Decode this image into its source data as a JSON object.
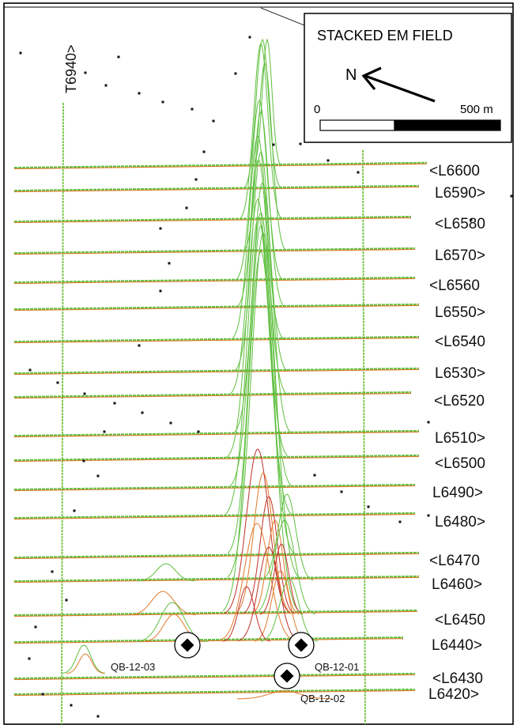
{
  "legend": {
    "title": "STACKED EM FIELD",
    "north": "N",
    "scale_start": "0",
    "scale_end": "500 m"
  },
  "tie_line": {
    "label": "T6940>"
  },
  "survey_lines": [
    {
      "label": "<L6600"
    },
    {
      "label": "L6590>"
    },
    {
      "label": "<L6580"
    },
    {
      "label": "L6570>"
    },
    {
      "label": "<L6560"
    },
    {
      "label": "L6550>"
    },
    {
      "label": "<L6540"
    },
    {
      "label": "L6530>"
    },
    {
      "label": "<L6520"
    },
    {
      "label": "L6510>"
    },
    {
      "label": "<L6500"
    },
    {
      "label": "L6490>"
    },
    {
      "label": "L6480>"
    },
    {
      "label": "<L6470"
    },
    {
      "label": "L6460>"
    },
    {
      "label": "<L6450"
    },
    {
      "label": "L6440>"
    },
    {
      "label": "<L6430"
    },
    {
      "label": "L6420>"
    }
  ],
  "drill_holes": [
    {
      "label": "QB-12-03"
    },
    {
      "label": "QB-12-01"
    },
    {
      "label": "QB-12-02"
    }
  ],
  "colors": {
    "profile_green": "#5fbf3f",
    "profile_orange": "#e07a2a",
    "profile_red": "#c0302a",
    "grid_line": "#7ec850"
  }
}
